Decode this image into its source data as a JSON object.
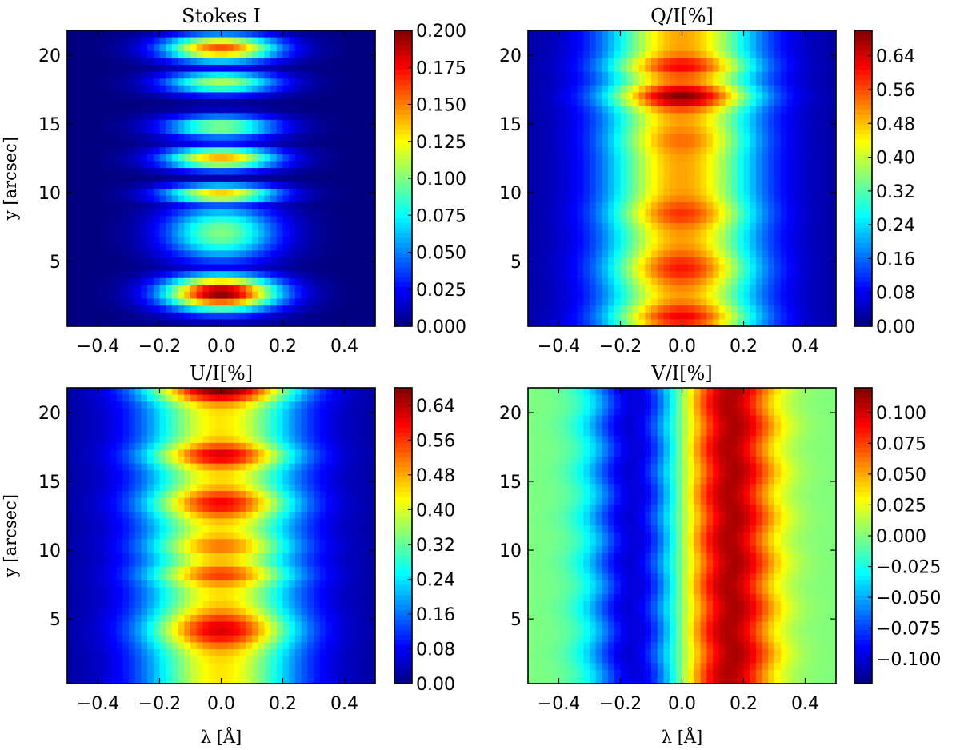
{
  "chart_data": [
    {
      "type": "heatmap",
      "title": "Stokes I",
      "xlabel": "",
      "ylabel": "y [arcsec]",
      "xlim": [
        -0.5,
        0.5
      ],
      "ylim": [
        0.3,
        21.8
      ],
      "xticks": [
        -0.4,
        -0.2,
        0.0,
        0.2,
        0.4
      ],
      "xtick_labels": [
        "−0.4",
        "−0.2",
        "0.0",
        "0.2",
        "0.4"
      ],
      "yticks": [
        5,
        10,
        15,
        20
      ],
      "ytick_labels": [
        "5",
        "10",
        "15",
        "20"
      ],
      "colormap": "jet",
      "colorbar": {
        "range": [
          0.0,
          0.2
        ],
        "ticks": [
          0.0,
          0.025,
          0.05,
          0.075,
          0.1,
          0.125,
          0.15,
          0.175,
          0.2
        ],
        "tick_labels": [
          "0.000",
          "0.025",
          "0.050",
          "0.075",
          "0.100",
          "0.125",
          "0.150",
          "0.175",
          "0.200"
        ]
      },
      "model": {
        "kind": "absorption",
        "line_width": 0.13,
        "background": 0.0,
        "rows": [
          {
            "y": 2.7,
            "value": 0.2,
            "spread": 0.9
          },
          {
            "y": 7.1,
            "value": 0.1,
            "spread": 1.5
          },
          {
            "y": 9.9,
            "value": 0.14,
            "spread": 0.5
          },
          {
            "y": 12.5,
            "value": 0.14,
            "spread": 0.6
          },
          {
            "y": 14.8,
            "value": 0.105,
            "spread": 0.6
          },
          {
            "y": 18.0,
            "value": 0.11,
            "spread": 0.6
          },
          {
            "y": 20.5,
            "value": 0.16,
            "spread": 0.7
          }
        ]
      }
    },
    {
      "type": "heatmap",
      "title": "Q/I[%]",
      "xlabel": "",
      "ylabel": "",
      "xlim": [
        -0.5,
        0.5
      ],
      "ylim": [
        0.3,
        21.8
      ],
      "xticks": [
        -0.4,
        -0.2,
        0.0,
        0.2,
        0.4
      ],
      "xtick_labels": [
        "−0.4",
        "−0.2",
        "0.0",
        "0.2",
        "0.4"
      ],
      "yticks": [
        5,
        10,
        15,
        20
      ],
      "ytick_labels": [
        "5",
        "10",
        "15",
        "20"
      ],
      "colormap": "jet",
      "colorbar": {
        "range": [
          0.0,
          0.7
        ],
        "ticks": [
          0.0,
          0.08,
          0.16,
          0.24,
          0.32,
          0.4,
          0.48,
          0.56,
          0.64
        ],
        "tick_labels": [
          "0.00",
          "0.08",
          "0.16",
          "0.24",
          "0.32",
          "0.40",
          "0.48",
          "0.56",
          "0.64"
        ]
      },
      "model": {
        "kind": "symmetric",
        "line_width": 0.17,
        "base_peak": 0.5,
        "background": 0.02,
        "rows": [
          {
            "y": 1.0,
            "value": 0.62,
            "spread": 0.6
          },
          {
            "y": 4.5,
            "value": 0.6,
            "spread": 0.8
          },
          {
            "y": 8.5,
            "value": 0.58,
            "spread": 0.7
          },
          {
            "y": 13.8,
            "value": 0.54,
            "spread": 0.6
          },
          {
            "y": 17.0,
            "value": 0.7,
            "spread": 0.6
          },
          {
            "y": 19.2,
            "value": 0.62,
            "spread": 0.5
          }
        ]
      }
    },
    {
      "type": "heatmap",
      "title": "U/I[%]",
      "xlabel": "λ [Å]",
      "ylabel": "y [arcsec]",
      "xlim": [
        -0.5,
        0.5
      ],
      "ylim": [
        0.3,
        21.8
      ],
      "xticks": [
        -0.4,
        -0.2,
        0.0,
        0.2,
        0.4
      ],
      "xtick_labels": [
        "−0.4",
        "−0.2",
        "0.0",
        "0.2",
        "0.4"
      ],
      "yticks": [
        5,
        10,
        15,
        20
      ],
      "ytick_labels": [
        "5",
        "10",
        "15",
        "20"
      ],
      "colormap": "jet",
      "colorbar": {
        "range": [
          0.0,
          0.68
        ],
        "ticks": [
          0.0,
          0.08,
          0.16,
          0.24,
          0.32,
          0.4,
          0.48,
          0.56,
          0.64
        ],
        "tick_labels": [
          "0.00",
          "0.08",
          "0.16",
          "0.24",
          "0.32",
          "0.40",
          "0.48",
          "0.56",
          "0.64"
        ]
      },
      "model": {
        "kind": "symmetric",
        "line_width": 0.17,
        "base_peak": 0.44,
        "background": 0.02,
        "rows": [
          {
            "y": 4.2,
            "value": 0.62,
            "spread": 0.9
          },
          {
            "y": 8.2,
            "value": 0.56,
            "spread": 0.5
          },
          {
            "y": 10.3,
            "value": 0.52,
            "spread": 0.5
          },
          {
            "y": 13.4,
            "value": 0.6,
            "spread": 0.7
          },
          {
            "y": 16.9,
            "value": 0.62,
            "spread": 0.6
          },
          {
            "y": 21.6,
            "value": 0.68,
            "spread": 0.6
          }
        ]
      }
    },
    {
      "type": "heatmap",
      "title": "V/I[%]",
      "xlabel": "λ [Å]",
      "ylabel": "",
      "xlim": [
        -0.5,
        0.5
      ],
      "ylim": [
        0.3,
        21.8
      ],
      "xticks": [
        -0.4,
        -0.2,
        0.0,
        0.2,
        0.4
      ],
      "xtick_labels": [
        "−0.4",
        "−0.2",
        "0.0",
        "0.2",
        "0.4"
      ],
      "yticks": [
        5,
        10,
        15,
        20
      ],
      "ytick_labels": [
        "5",
        "10",
        "15",
        "20"
      ],
      "colormap": "jet",
      "colorbar": {
        "range": [
          -0.12,
          0.12
        ],
        "ticks": [
          -0.1,
          -0.075,
          -0.05,
          -0.025,
          0.0,
          0.025,
          0.05,
          0.075,
          0.1
        ],
        "tick_labels": [
          "−0.100",
          "−0.075",
          "−0.050",
          "−0.025",
          "0.000",
          "0.025",
          "0.050",
          "0.075",
          "0.100"
        ]
      },
      "model": {
        "kind": "antisymmetric",
        "line_width": 0.1,
        "negative_center": -0.16,
        "positive_center": 0.16,
        "negative_value": -0.1,
        "positive_value": 0.11,
        "background": 0.0
      }
    }
  ]
}
